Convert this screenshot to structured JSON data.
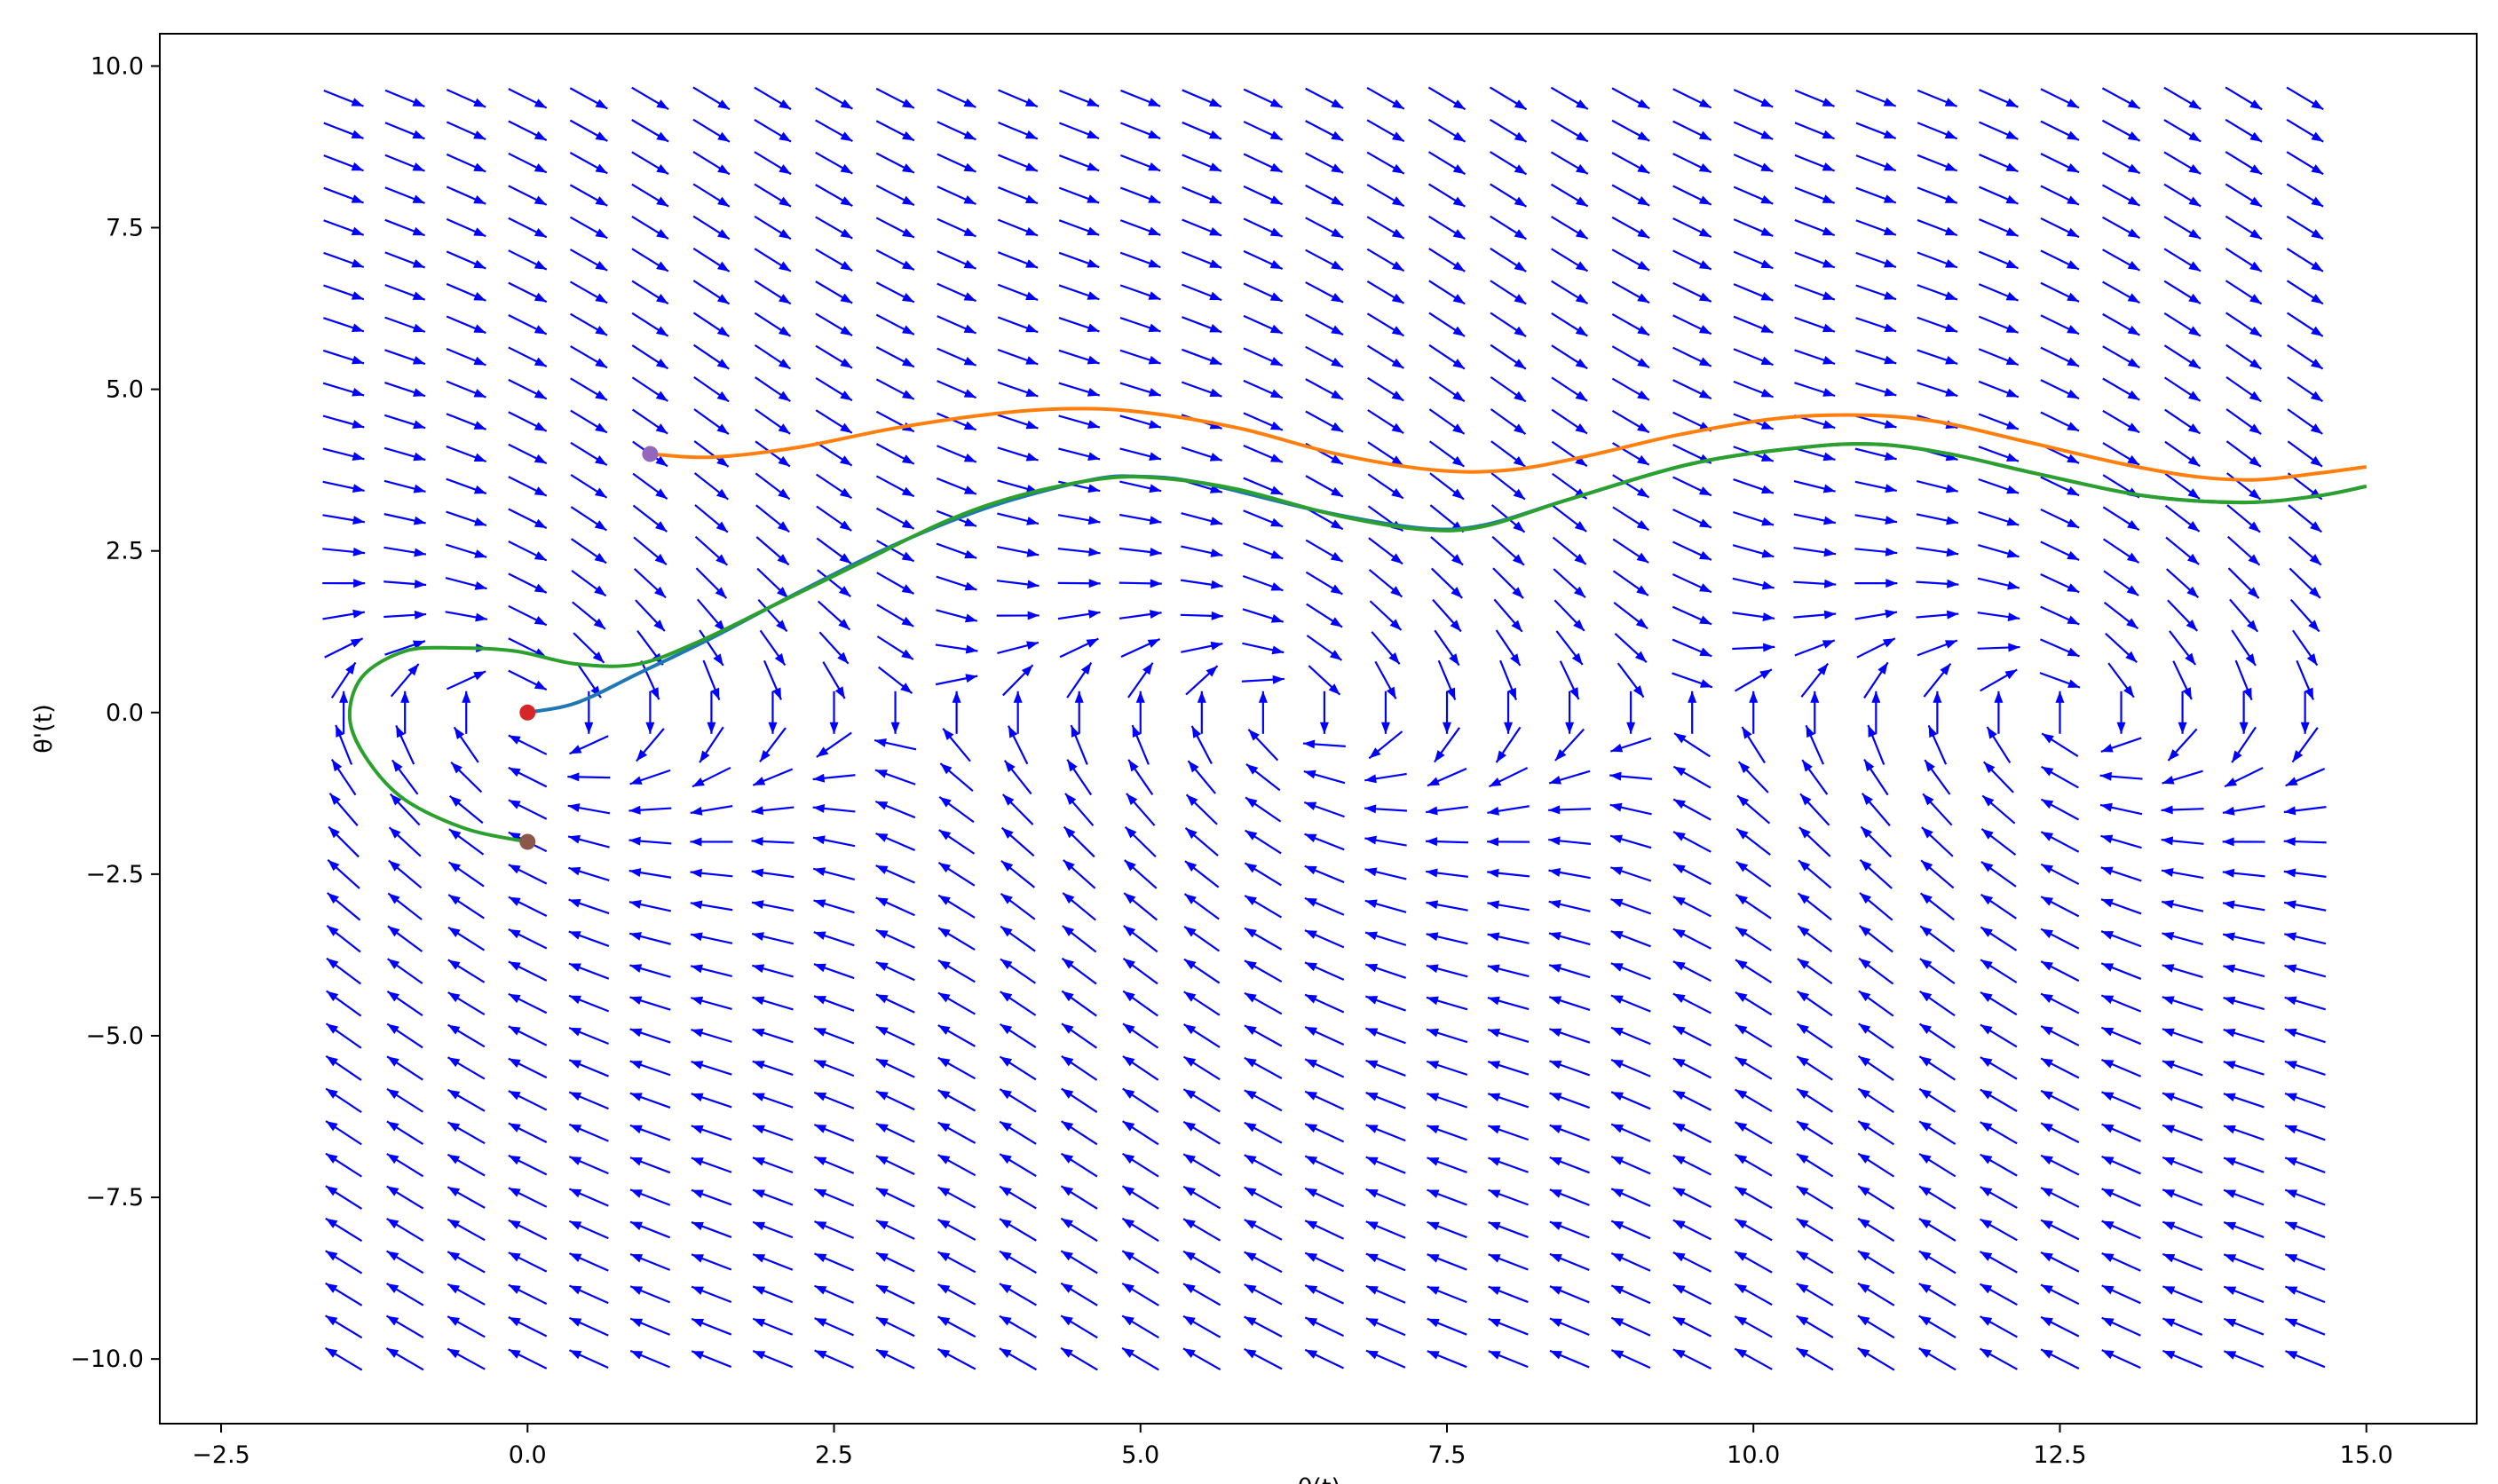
{
  "chart_data": {
    "type": "quiver",
    "xlabel": "θ(t)",
    "ylabel": "θ'(t)",
    "xlim": [
      -3.0,
      15.9
    ],
    "ylim": [
      -11.0,
      10.5
    ],
    "xticks": [
      -2.5,
      0.0,
      2.5,
      5.0,
      7.5,
      10.0,
      12.5,
      15.0
    ],
    "xtick_labels": [
      "−2.5",
      "0.0",
      "2.5",
      "5.0",
      "7.5",
      "10.0",
      "12.5",
      "15.0"
    ],
    "yticks": [
      10.0,
      7.5,
      5.0,
      2.5,
      0.0,
      -2.5,
      -5.0,
      -7.5,
      -10.0
    ],
    "ytick_labels": [
      "10.0",
      "7.5",
      "5.0",
      "2.5",
      "0.0",
      "−2.5",
      "−5.0",
      "−7.5",
      "−10.0"
    ],
    "vector_field": {
      "equation": "θ'' = −sin(θ) − 0.5·θ'",
      "x_range": [
        -1.5,
        14.5
      ],
      "y_range": [
        -10.0,
        9.5
      ],
      "nx": 33,
      "ny": 40,
      "color": "#0000ff"
    },
    "trajectories": [
      {
        "color": "#1f77b4",
        "points": [
          [
            0.0,
            0.0
          ],
          [
            0.4,
            0.15
          ],
          [
            0.9,
            0.6
          ],
          [
            1.5,
            1.15
          ],
          [
            2.2,
            1.85
          ],
          [
            3.0,
            2.6
          ],
          [
            3.8,
            3.2
          ],
          [
            4.6,
            3.6
          ],
          [
            5.0,
            3.65
          ],
          [
            5.5,
            3.55
          ],
          [
            6.5,
            3.1
          ],
          [
            7.3,
            2.85
          ],
          [
            7.8,
            2.9
          ],
          [
            8.5,
            3.3
          ],
          [
            9.5,
            3.85
          ],
          [
            10.4,
            4.1
          ],
          [
            11.0,
            4.15
          ],
          [
            11.6,
            4.0
          ],
          [
            12.3,
            3.7
          ],
          [
            13.2,
            3.35
          ],
          [
            14.0,
            3.25
          ],
          [
            14.6,
            3.35
          ],
          [
            15.0,
            3.5
          ]
        ]
      },
      {
        "color": "#ff7f0e",
        "points": [
          [
            1.0,
            4.0
          ],
          [
            1.5,
            3.95
          ],
          [
            2.2,
            4.1
          ],
          [
            3.0,
            4.4
          ],
          [
            3.8,
            4.62
          ],
          [
            4.4,
            4.7
          ],
          [
            5.0,
            4.65
          ],
          [
            5.8,
            4.4
          ],
          [
            6.6,
            4.0
          ],
          [
            7.4,
            3.75
          ],
          [
            8.0,
            3.75
          ],
          [
            8.6,
            3.95
          ],
          [
            9.4,
            4.3
          ],
          [
            10.2,
            4.55
          ],
          [
            10.9,
            4.6
          ],
          [
            11.5,
            4.5
          ],
          [
            12.2,
            4.2
          ],
          [
            13.0,
            3.85
          ],
          [
            13.6,
            3.65
          ],
          [
            14.1,
            3.6
          ],
          [
            14.6,
            3.7
          ],
          [
            15.0,
            3.8
          ]
        ]
      },
      {
        "color": "#2ca02c",
        "points": [
          [
            0.0,
            -2.0
          ],
          [
            -0.5,
            -1.8
          ],
          [
            -1.0,
            -1.35
          ],
          [
            -1.3,
            -0.75
          ],
          [
            -1.45,
            -0.1
          ],
          [
            -1.35,
            0.55
          ],
          [
            -1.0,
            0.95
          ],
          [
            -0.6,
            1.0
          ],
          [
            -0.1,
            0.95
          ],
          [
            0.4,
            0.75
          ],
          [
            0.9,
            0.75
          ],
          [
            1.4,
            1.1
          ],
          [
            2.0,
            1.65
          ],
          [
            2.7,
            2.3
          ],
          [
            3.4,
            2.95
          ],
          [
            4.0,
            3.35
          ],
          [
            4.7,
            3.62
          ],
          [
            5.2,
            3.62
          ],
          [
            5.8,
            3.45
          ],
          [
            6.6,
            3.05
          ],
          [
            7.3,
            2.83
          ],
          [
            7.8,
            2.88
          ],
          [
            8.5,
            3.3
          ],
          [
            9.5,
            3.85
          ],
          [
            10.4,
            4.1
          ],
          [
            11.0,
            4.15
          ],
          [
            11.6,
            4.0
          ],
          [
            12.3,
            3.7
          ],
          [
            13.2,
            3.35
          ],
          [
            14.0,
            3.25
          ],
          [
            14.6,
            3.35
          ],
          [
            15.0,
            3.5
          ]
        ]
      }
    ],
    "markers": [
      {
        "x": 0.0,
        "y": 0.0,
        "color": "#d62728"
      },
      {
        "x": 1.0,
        "y": 4.0,
        "color": "#9467bd"
      },
      {
        "x": 0.0,
        "y": -2.0,
        "color": "#8c564b"
      }
    ]
  }
}
